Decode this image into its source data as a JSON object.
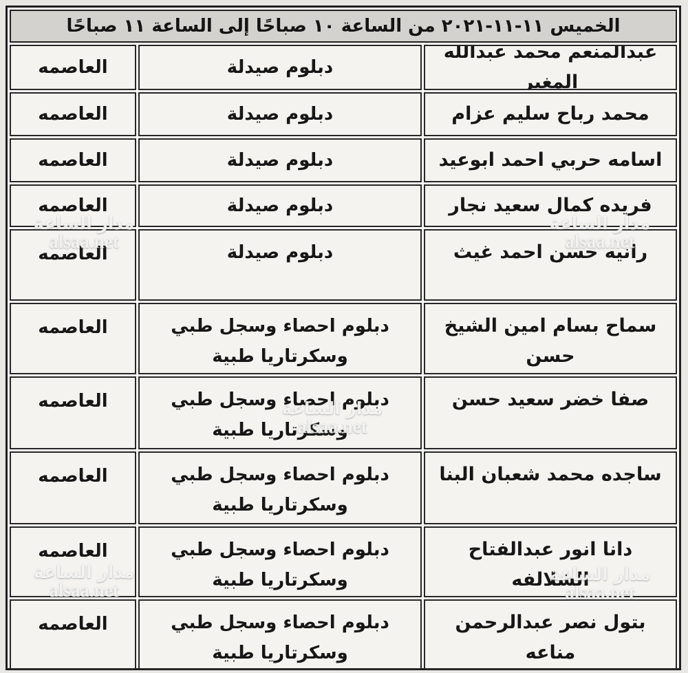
{
  "header": {
    "title": "الخميس ١١-١١-٢٠٢١ من الساعة ١٠ صباحًا إلى الساعة ١١ صباحًا"
  },
  "table": {
    "rows": [
      {
        "name": "عبدالمنعم محمد عبدالله\nالمغير",
        "diploma": "دبلوم صيدلة",
        "governorate": "العاصمه"
      },
      {
        "name": "محمد رباح سليم عزام",
        "diploma": "دبلوم صيدلة",
        "governorate": "العاصمه"
      },
      {
        "name": "اسامه حربي احمد ابوعيد",
        "diploma": "دبلوم صيدلة",
        "governorate": "العاصمه"
      },
      {
        "name": "فريده كمال سعيد نجار",
        "diploma": "دبلوم صيدلة",
        "governorate": "العاصمه"
      },
      {
        "name": "رانيه حسن احمد غيث",
        "diploma": "دبلوم صيدلة",
        "governorate": "العاصمه"
      },
      {
        "name": "سماح بسام امين الشيخ\nحسن",
        "diploma": "دبلوم احصاء وسجل طبي\nوسكرتاريا طبية",
        "governorate": "العاصمه"
      },
      {
        "name": "صفا خضر سعيد حسن",
        "diploma": "دبلوم احصاء وسجل طبي\nوسكرتاريا طبية",
        "governorate": "العاصمه"
      },
      {
        "name": "ساجده محمد شعبان البنا",
        "diploma": "دبلوم احصاء وسجل طبي\nوسكرتاريا طبية",
        "governorate": "العاصمه"
      },
      {
        "name": "دانا انور عبدالفتاح\nالشلالفه",
        "diploma": "دبلوم احصاء وسجل طبي\nوسكرتاريا طبية",
        "governorate": "العاصمه"
      },
      {
        "name": "بتول نصر عبدالرحمن\nمناعه",
        "diploma": "دبلوم احصاء وسجل طبي\nوسكرتاريا طبية",
        "governorate": "العاصمه"
      }
    ]
  },
  "watermark": {
    "line1": "مدار الساعة",
    "line2": "alsaa.net"
  },
  "colors": {
    "header_bg": "#d3d2cf",
    "cell_bg": "#f4f3f0",
    "border": "#1f1f1f",
    "text": "#171717",
    "watermark_text": "#ffffff"
  }
}
